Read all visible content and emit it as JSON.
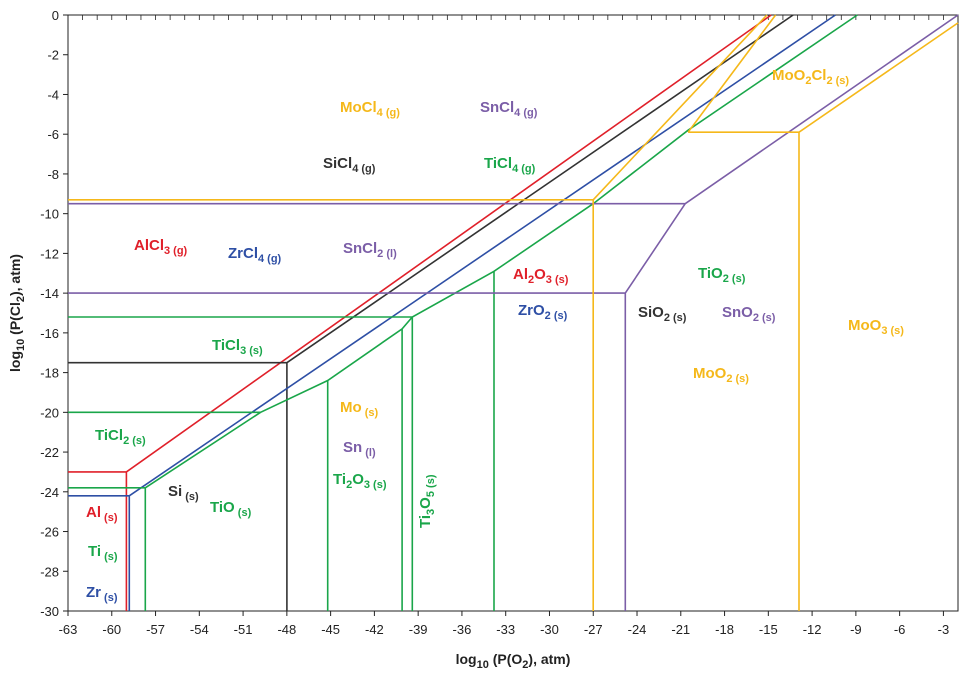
{
  "chart_data": {
    "type": "line",
    "xlabel": [
      "log",
      "10",
      " (P(O",
      "2",
      "), atm)"
    ],
    "ylabel": [
      "log",
      "10",
      " (P(Cl",
      "2",
      "), atm)"
    ],
    "xlim": [
      -63,
      -2
    ],
    "ylim": [
      -30,
      0
    ],
    "xticks": [
      -63,
      -60,
      -57,
      -54,
      -51,
      -48,
      -45,
      -42,
      -39,
      -36,
      -33,
      -30,
      -27,
      -24,
      -21,
      -18,
      -15,
      -12,
      -9,
      -6,
      -3
    ],
    "yticks": [
      0,
      -2,
      -4,
      -6,
      -8,
      -10,
      -12,
      -14,
      -16,
      -18,
      -20,
      -22,
      -24,
      -26,
      -28,
      -30
    ],
    "series": [
      {
        "color": "#e0202a",
        "x": [
          -63,
          -59,
          -14.8,
          null,
          -59,
          -59
        ],
        "y": [
          -23,
          -23,
          0,
          null,
          -23,
          -30
        ]
      },
      {
        "color": "#333333",
        "x": [
          -63,
          -48,
          -13.3,
          null,
          -48,
          -48
        ],
        "y": [
          -17.5,
          -17.5,
          0,
          null,
          -17.5,
          -30
        ]
      },
      {
        "color": "#2e4fa5",
        "x": [
          -63,
          -58.8,
          -10.4,
          null,
          -58.8,
          -58.8
        ],
        "y": [
          -24.2,
          -24.2,
          0,
          null,
          -24.2,
          -30
        ]
      },
      {
        "color": "#1aa64a",
        "x": [
          -63,
          -57.7,
          -57.7,
          null,
          -63,
          -49.8,
          null,
          -63,
          -39.4,
          null,
          -57.7,
          -49.8,
          -45.2,
          -40.1,
          -39.4,
          -33.8,
          -27,
          -20.5,
          -8.9,
          null,
          -45.2,
          -45.2,
          null,
          -40.1,
          -40.1,
          null,
          -39.4,
          -39.4,
          null,
          -33.8,
          -33.8
        ],
        "y": [
          -23.8,
          -23.8,
          -30,
          null,
          -20,
          -20,
          null,
          -15.2,
          -15.2,
          null,
          -23.8,
          -20,
          -18.4,
          -15.8,
          -15.2,
          -12.9,
          -9.5,
          -5.8,
          0,
          null,
          -18.4,
          -30,
          null,
          -15.8,
          -30,
          null,
          -15.2,
          -30,
          null,
          -12.9,
          -30
        ]
      },
      {
        "color": "#7b5ea7",
        "x": [
          -63,
          -20.7,
          -2,
          null,
          -63,
          -24.8,
          -24.8,
          null,
          -24.8,
          -20.7
        ],
        "y": [
          -9.5,
          -9.5,
          0,
          null,
          -14,
          -14,
          -30,
          null,
          -14,
          -9.5
        ]
      },
      {
        "color": "#f5b81a",
        "x": [
          -63,
          -27,
          -27,
          null,
          -27,
          -15.1,
          null,
          -20.5,
          -12.9,
          -12.9,
          null,
          -20.5,
          -14.5,
          null,
          -12.9,
          -2
        ],
        "y": [
          -9.3,
          -9.3,
          -30,
          null,
          -9.3,
          0,
          null,
          -5.9,
          -5.9,
          -30,
          null,
          -5.9,
          0,
          null,
          -5.9,
          -0.4
        ]
      }
    ],
    "region_labels": [
      {
        "parts": [
          "MoCl",
          "4 (g)"
        ],
        "color": "#f5b81a"
      },
      {
        "parts": [
          "SnCl",
          "4 (g)"
        ],
        "color": "#7b5ea7"
      },
      {
        "parts": [
          "SiCl",
          "4 (g)"
        ],
        "color": "#333333"
      },
      {
        "parts": [
          "TiCl",
          "4 (g)"
        ],
        "color": "#1aa64a"
      },
      {
        "parts": [
          "MoO",
          "2",
          "Cl",
          "2 (s)"
        ],
        "color": "#f5b81a"
      },
      {
        "parts": [
          "AlCl",
          "3 (g)"
        ],
        "color": "#e0202a"
      },
      {
        "parts": [
          "ZrCl",
          "4 (g)"
        ],
        "color": "#2e4fa5"
      },
      {
        "parts": [
          "SnCl",
          "2 (l)"
        ],
        "color": "#7b5ea7"
      },
      {
        "parts": [
          "Al",
          "2",
          "O",
          "3 (s)"
        ],
        "color": "#e0202a"
      },
      {
        "parts": [
          "TiO",
          "2 (s)"
        ],
        "color": "#1aa64a"
      },
      {
        "parts": [
          "ZrO",
          "2 (s)"
        ],
        "color": "#2e4fa5"
      },
      {
        "parts": [
          "SiO",
          "2 (s)"
        ],
        "color": "#333333"
      },
      {
        "parts": [
          "SnO",
          "2 (s)"
        ],
        "color": "#7b5ea7"
      },
      {
        "parts": [
          "MoO",
          "3 (s)"
        ],
        "color": "#f5b81a"
      },
      {
        "parts": [
          "TiCl",
          "3 (s)"
        ],
        "color": "#1aa64a"
      },
      {
        "parts": [
          "MoO",
          "2 (s)"
        ],
        "color": "#f5b81a"
      },
      {
        "parts": [
          "Mo",
          " (s)"
        ],
        "color": "#f5b81a"
      },
      {
        "parts": [
          "TiCl",
          "2 (s)"
        ],
        "color": "#1aa64a"
      },
      {
        "parts": [
          "Sn",
          " (l)"
        ],
        "color": "#7b5ea7"
      },
      {
        "parts": [
          "Ti",
          "3",
          "O",
          "5 (s)"
        ],
        "color": "#1aa64a"
      },
      {
        "parts": [
          "Ti",
          "2",
          "O",
          "3 (s)"
        ],
        "color": "#1aa64a"
      },
      {
        "parts": [
          "Si",
          " (s)"
        ],
        "color": "#333333"
      },
      {
        "parts": [
          "TiO",
          " (s)"
        ],
        "color": "#1aa64a"
      },
      {
        "parts": [
          "Al",
          " (s)"
        ],
        "color": "#e0202a"
      },
      {
        "parts": [
          "Ti",
          " (s)"
        ],
        "color": "#1aa64a"
      },
      {
        "parts": [
          "Zr",
          " (s)"
        ],
        "color": "#2e4fa5"
      }
    ]
  }
}
